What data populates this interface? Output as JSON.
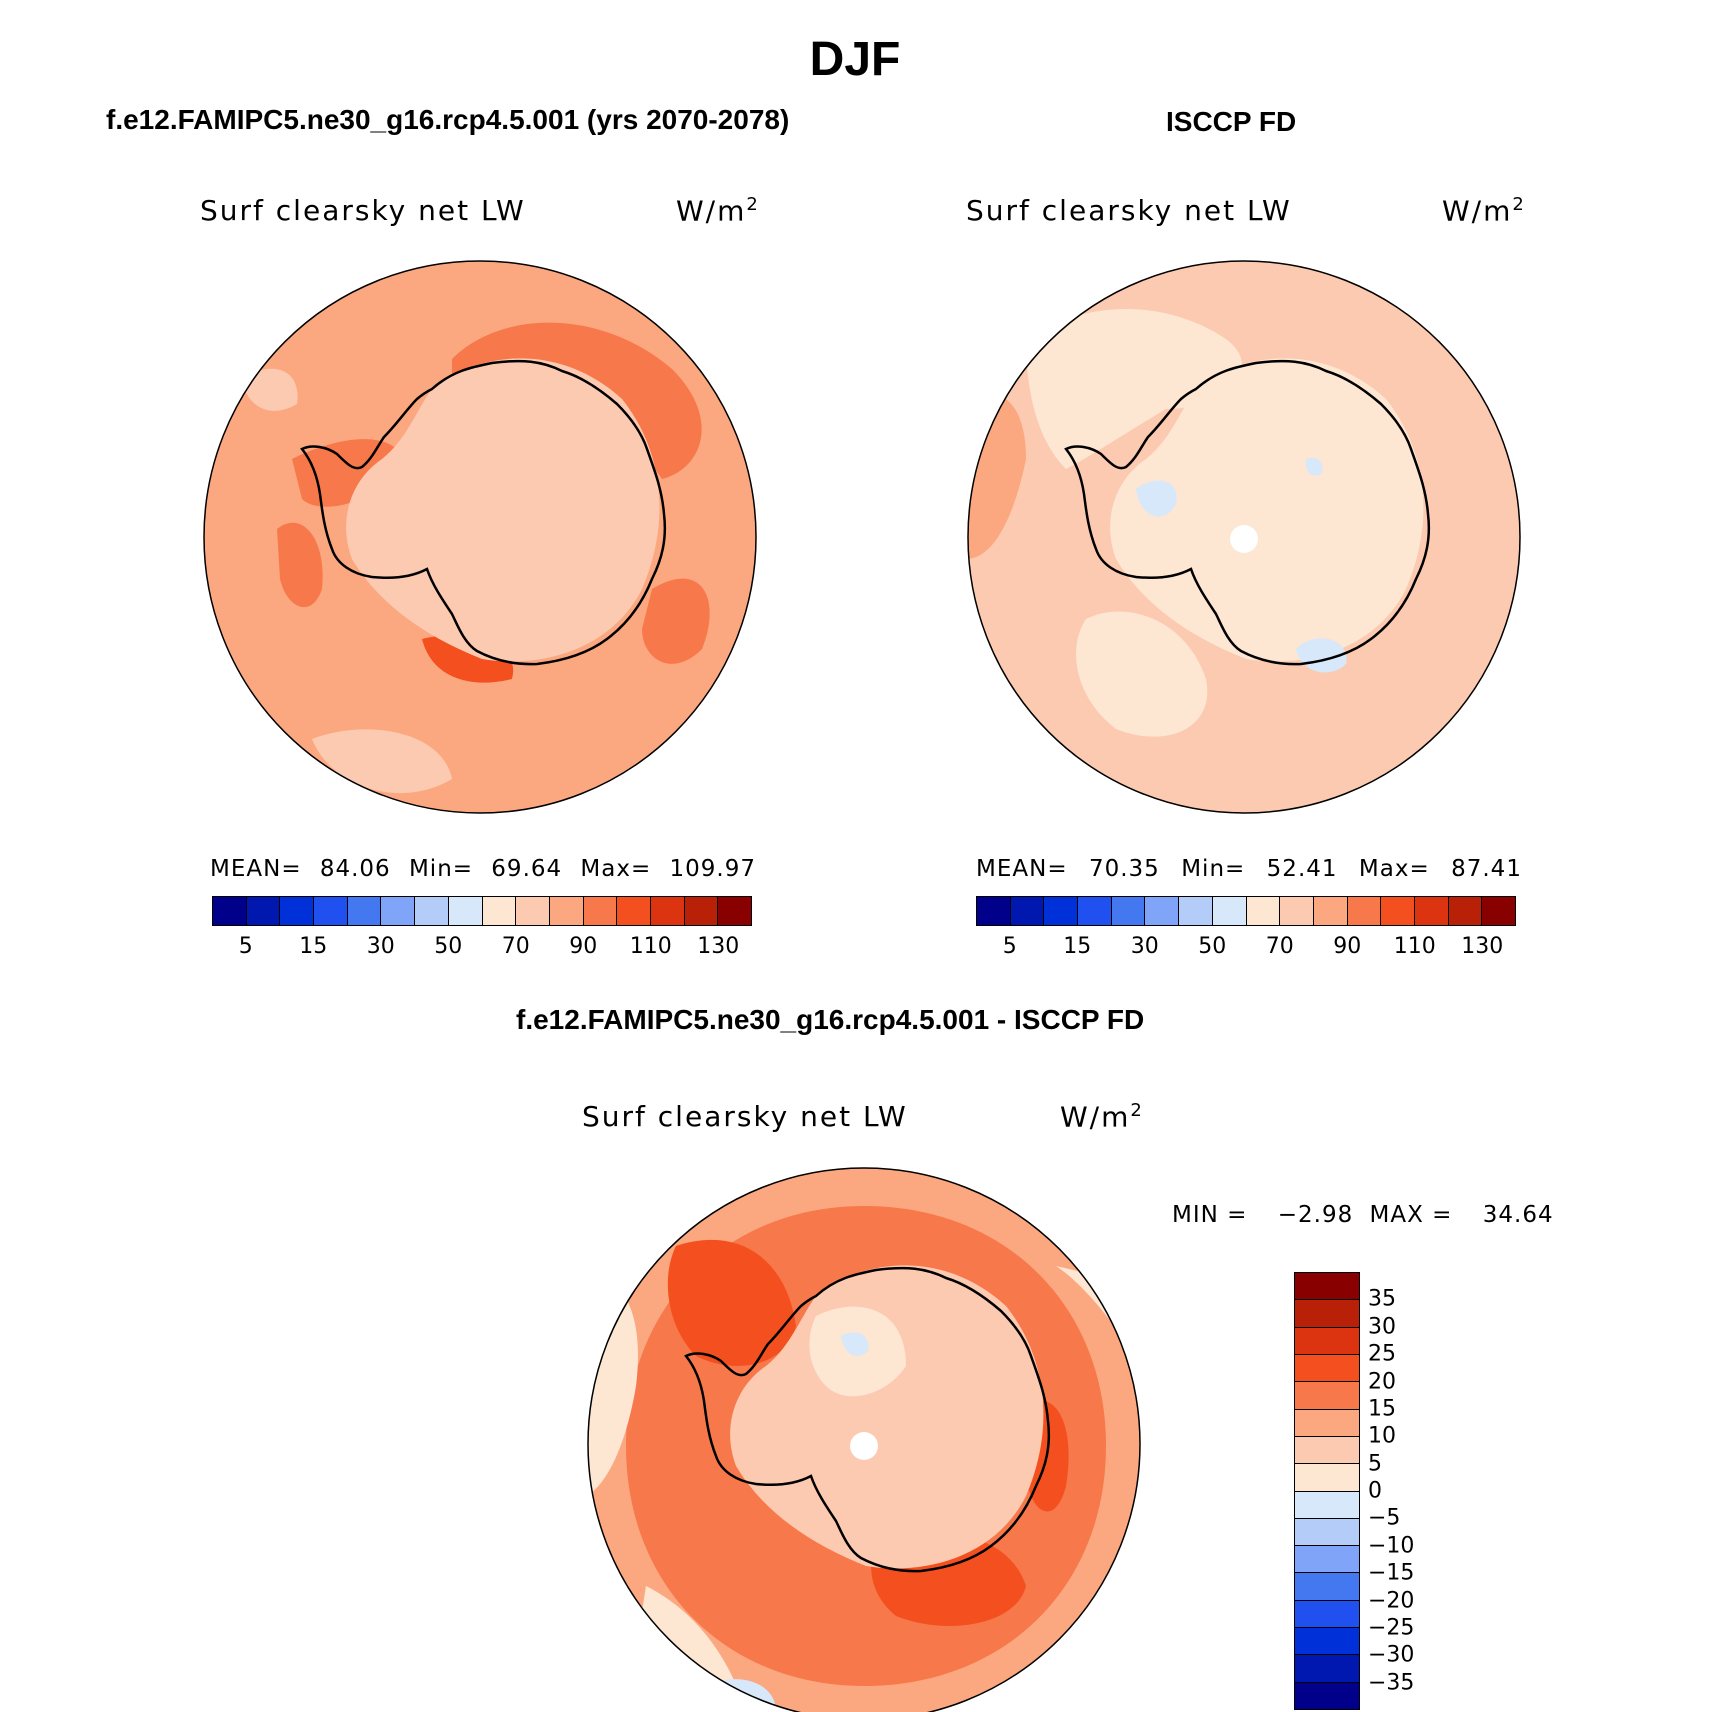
{
  "figure": {
    "season": "DJF",
    "left_title": "f.e12.FAMIPC5.ne30_g16.rcp4.5.001 (yrs 2070-2078)",
    "right_title": "ISCCP FD",
    "diff_title": "f.e12.FAMIPC5.ne30_g16.rcp4.5.001 - ISCCP FD"
  },
  "panels": {
    "model": {
      "variable": "Surf clearsky net LW",
      "units": "W/m",
      "units_exp": "2",
      "mean_label": "MEAN=",
      "mean": "84.06",
      "min_label": "Min=",
      "min": "69.64",
      "max_label": "Max=",
      "max": "109.97"
    },
    "obs": {
      "variable": "Surf clearsky net LW",
      "units": "W/m",
      "units_exp": "2",
      "mean_label": "MEAN=",
      "mean": "70.35",
      "min_label": "Min=",
      "min": "52.41",
      "max_label": "Max=",
      "max": "87.41"
    },
    "diff": {
      "variable": "Surf clearsky net LW",
      "units": "W/m",
      "units_exp": "2",
      "min_label": "MIN =",
      "min": "−2.98",
      "max_label": "MAX =",
      "max": "34.64"
    }
  },
  "colorbar_abs": {
    "colors": [
      "#00008a",
      "#0018b0",
      "#0030d8",
      "#2050f0",
      "#4478f0",
      "#80a4f8",
      "#b4ccf8",
      "#d6e8fa",
      "#fde6d2",
      "#fccab0",
      "#fba880",
      "#f7784a",
      "#f4501f",
      "#dc3410",
      "#b82008",
      "#880000"
    ],
    "tick_labels": [
      "5",
      "15",
      "30",
      "50",
      "70",
      "90",
      "110",
      "130"
    ]
  },
  "colorbar_diff": {
    "colors": [
      "#880000",
      "#b82008",
      "#dc3410",
      "#f4501f",
      "#f7784a",
      "#fba880",
      "#fccab0",
      "#fde6d2",
      "#d6e8fa",
      "#b4ccf8",
      "#80a4f8",
      "#4478f0",
      "#2050f0",
      "#0030d8",
      "#0018b0",
      "#00008a"
    ],
    "tick_labels": [
      "35",
      "30",
      "25",
      "20",
      "15",
      "10",
      "5",
      "0",
      "−5",
      "−10",
      "−15",
      "−20",
      "−25",
      "−30",
      "−35"
    ]
  },
  "map_data": {
    "projection": "south polar stereographic",
    "region": "Antarctica",
    "field_colors": {
      "model_base": "#fba880",
      "model_ice": "#fccab0",
      "model_hot": "#f7784a",
      "obs_base": "#fccab0",
      "obs_ice": "#fde6d2",
      "obs_cool": "#d6e8fa",
      "diff_base": "#f7784a",
      "diff_hot": "#f4501f",
      "diff_pale": "#fde6d2",
      "diff_blue": "#d6e8fa"
    }
  }
}
